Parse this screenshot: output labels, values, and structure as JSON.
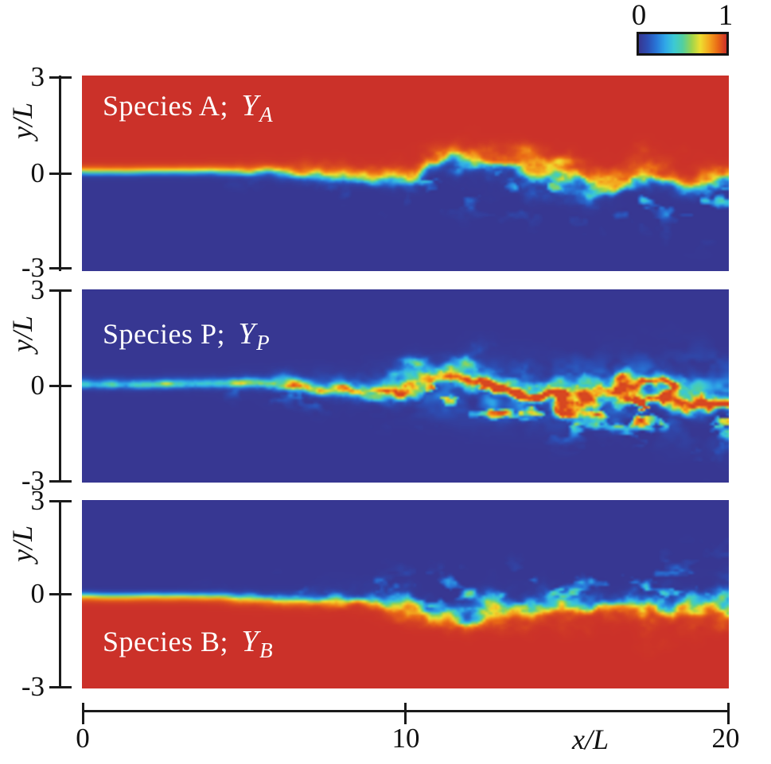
{
  "figure": {
    "background": "#ffffff",
    "kind": "three-panel scalar field snapshots of a turbulent mixing layer"
  },
  "chart_data": {
    "type": "heatmap",
    "x_axis": {
      "label": "x/L",
      "range": [
        0,
        20
      ],
      "ticks": [
        0,
        10,
        20
      ]
    },
    "y_axis": {
      "label": "y/L",
      "range": [
        -3,
        3
      ],
      "ticks": [
        3,
        0,
        -3
      ]
    },
    "colorbar": {
      "range": [
        0,
        1
      ],
      "ticks": [
        0,
        1
      ],
      "orientation": "horizontal",
      "colormap": "jet-like",
      "colormap_stops": [
        [
          0.0,
          "#373792"
        ],
        [
          0.1,
          "#2c4fb5"
        ],
        [
          0.2,
          "#2877d8"
        ],
        [
          0.3,
          "#2fa7e8"
        ],
        [
          0.4,
          "#3cc9d4"
        ],
        [
          0.5,
          "#52cfa0"
        ],
        [
          0.6,
          "#9bd44e"
        ],
        [
          0.7,
          "#eede30"
        ],
        [
          0.8,
          "#f4a71f"
        ],
        [
          0.9,
          "#ea6a16"
        ],
        [
          1.0,
          "#cb3129"
        ]
      ]
    },
    "panels": [
      {
        "id": "A",
        "label_prefix": "Species A; ",
        "symbol": "Y",
        "subscript": "A",
        "field_kind": "upper_stream",
        "free_stream_value_top": 1,
        "free_stream_value_bottom": 0,
        "seed": 11,
        "description": "Mass fraction of species A: 1 (red) in upper stream, 0 (blue) in lower stream, turbulent interface near y/L = 0 rolling up downstream"
      },
      {
        "id": "P",
        "label_prefix": "Species P; ",
        "symbol": "Y",
        "subscript": "P",
        "field_kind": "product",
        "free_stream_value_top": 0,
        "free_stream_value_bottom": 0,
        "seed": 23,
        "description": "Product mass fraction: zero (blue) in both free streams, thin cyan layer near inlet growing into speckled yellow-orange turbulent band along y/L ~ 0"
      },
      {
        "id": "B",
        "label_prefix": "Species B; ",
        "symbol": "Y",
        "subscript": "B",
        "field_kind": "lower_stream",
        "free_stream_value_top": 0,
        "free_stream_value_bottom": 1,
        "seed": 37,
        "description": "Mass fraction of species B: 0 (blue) in upper stream, 1 (red) in lower stream; mirror of species A with entrained cyan filaments"
      }
    ],
    "mixing_layer": {
      "interface_y": 0,
      "growth_start_x": 2.5,
      "band_halfwidth_at_x20": 1.05,
      "center_drift_at_x20": -0.3,
      "transition_thickness": 0.07
    }
  }
}
